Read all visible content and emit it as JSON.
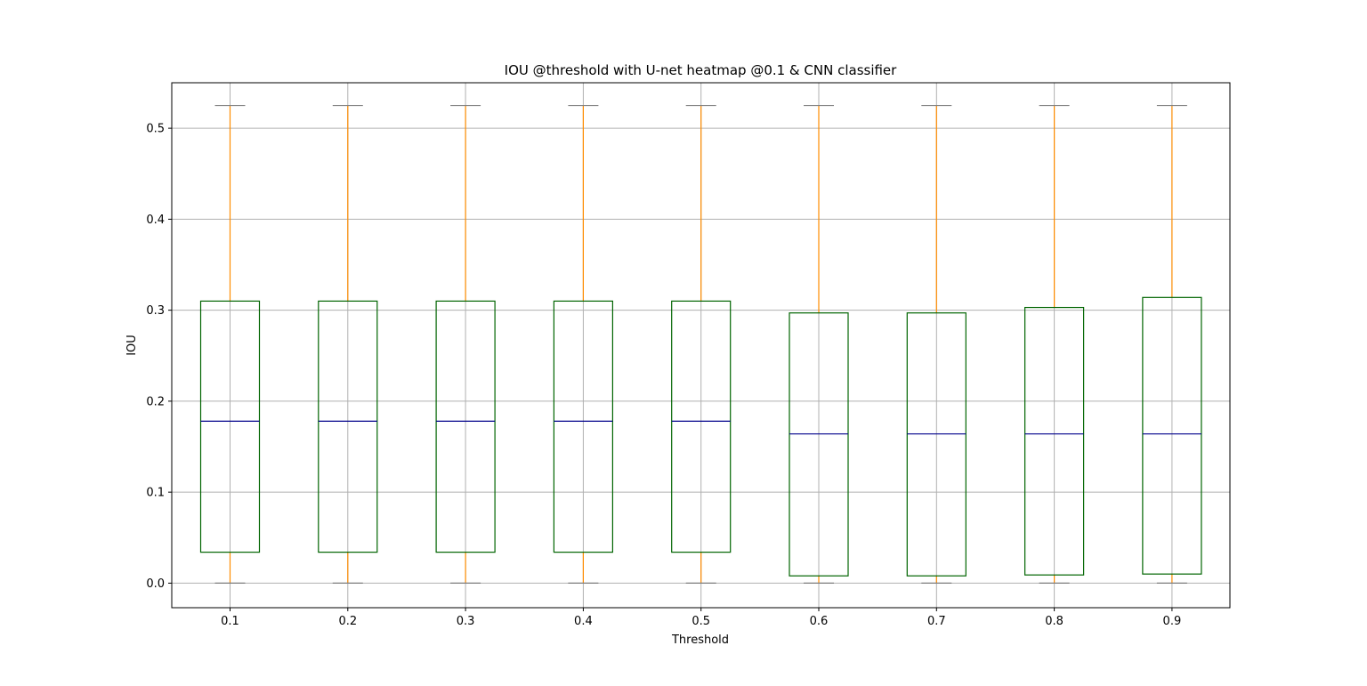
{
  "chart_data": {
    "type": "box",
    "title": "IOU @threshold with U-net heatmap @0.1 & CNN classifier",
    "xlabel": "Threshold",
    "ylabel": "IOU",
    "ylim": [
      -0.027,
      0.55
    ],
    "yticks": [
      "0.0",
      "0.1",
      "0.2",
      "0.3",
      "0.4",
      "0.5"
    ],
    "grid": true,
    "colors": {
      "box": "#006400",
      "whisker": "#ff8c00",
      "median": "#00008b",
      "cap": "#808080",
      "grid": "#b0b0b0"
    },
    "categories": [
      "0.1",
      "0.2",
      "0.3",
      "0.4",
      "0.5",
      "0.6",
      "0.7",
      "0.8",
      "0.9"
    ],
    "boxes": [
      {
        "whislo": 0.0,
        "q1": 0.034,
        "med": 0.178,
        "q3": 0.31,
        "whishi": 0.525
      },
      {
        "whislo": 0.0,
        "q1": 0.034,
        "med": 0.178,
        "q3": 0.31,
        "whishi": 0.525
      },
      {
        "whislo": 0.0,
        "q1": 0.034,
        "med": 0.178,
        "q3": 0.31,
        "whishi": 0.525
      },
      {
        "whislo": 0.0,
        "q1": 0.034,
        "med": 0.178,
        "q3": 0.31,
        "whishi": 0.525
      },
      {
        "whislo": 0.0,
        "q1": 0.034,
        "med": 0.178,
        "q3": 0.31,
        "whishi": 0.525
      },
      {
        "whislo": 0.0,
        "q1": 0.008,
        "med": 0.164,
        "q3": 0.297,
        "whishi": 0.525
      },
      {
        "whislo": 0.0,
        "q1": 0.008,
        "med": 0.164,
        "q3": 0.297,
        "whishi": 0.525
      },
      {
        "whislo": 0.0,
        "q1": 0.009,
        "med": 0.164,
        "q3": 0.303,
        "whishi": 0.525
      },
      {
        "whislo": 0.0,
        "q1": 0.01,
        "med": 0.164,
        "q3": 0.314,
        "whishi": 0.525
      }
    ]
  }
}
